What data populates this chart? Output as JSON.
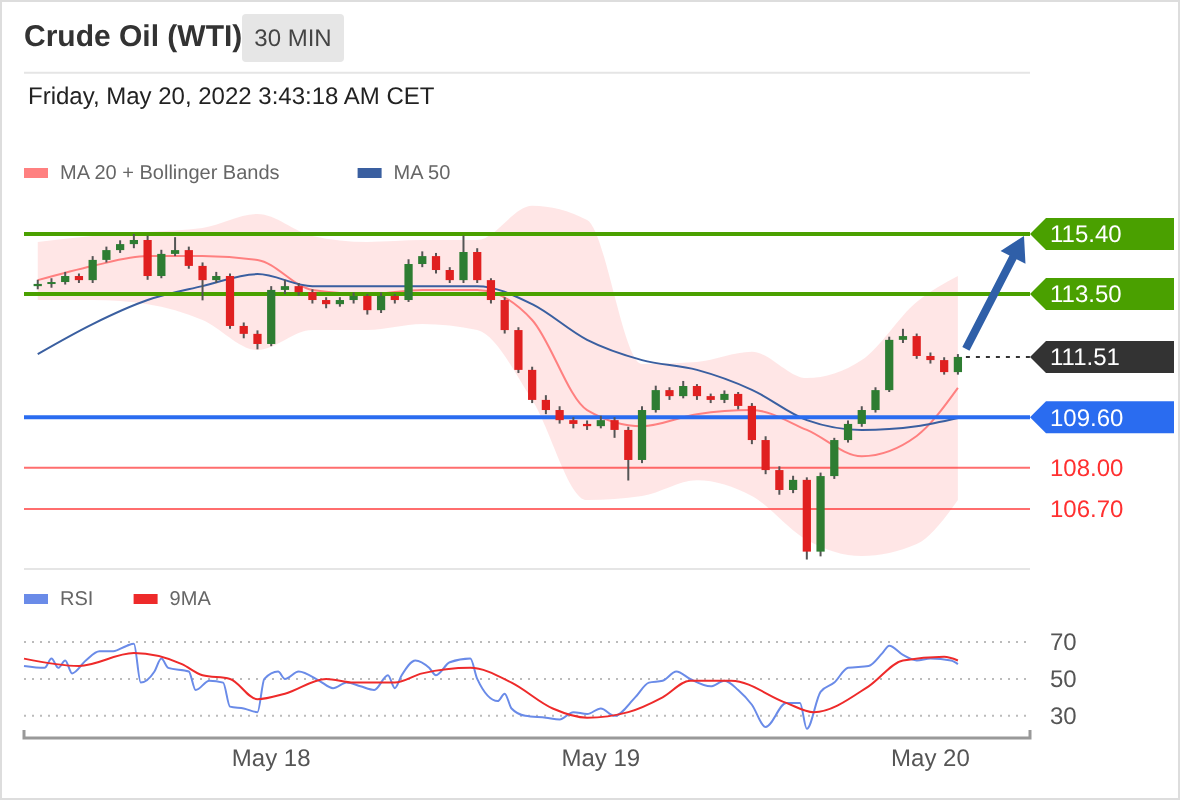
{
  "chart_data": [
    {
      "type": "candlestick",
      "title": "Crude Oil (WTI)",
      "subtitle": "30 MIN",
      "annotations": [
        "Friday, May 20, 2022 3:43:18 AM CET"
      ],
      "tick_labels": false,
      "legend": "top left",
      "xlim": [
        "2022-05-17T06:00",
        "2022-05-20T07:15"
      ],
      "ylim": [
        104.8,
        120.5
      ],
      "x": [
        "2022-05-17T07:00",
        "2022-05-17T08:00",
        "2022-05-17T09:00",
        "2022-05-17T10:00",
        "2022-05-17T11:00",
        "2022-05-17T12:00",
        "2022-05-17T13:00",
        "2022-05-17T14:00",
        "2022-05-17T15:00",
        "2022-05-17T16:00",
        "2022-05-17T17:00",
        "2022-05-17T18:00",
        "2022-05-17T19:00",
        "2022-05-17T20:00",
        "2022-05-17T21:00",
        "2022-05-17T22:00",
        "2022-05-17T23:00",
        "2022-05-18T00:00",
        "2022-05-18T01:00",
        "2022-05-18T02:00",
        "2022-05-18T03:00",
        "2022-05-18T04:00",
        "2022-05-18T05:00",
        "2022-05-18T06:00",
        "2022-05-18T07:00",
        "2022-05-18T08:00",
        "2022-05-18T09:00",
        "2022-05-18T10:00",
        "2022-05-18T11:00",
        "2022-05-18T12:00",
        "2022-05-18T13:00",
        "2022-05-18T14:00",
        "2022-05-18T15:00",
        "2022-05-18T16:00",
        "2022-05-18T17:00",
        "2022-05-18T18:00",
        "2022-05-18T19:00",
        "2022-05-18T20:00",
        "2022-05-18T21:00",
        "2022-05-18T22:00",
        "2022-05-18T23:00",
        "2022-05-19T00:00",
        "2022-05-19T01:00",
        "2022-05-19T02:00",
        "2022-05-19T03:00",
        "2022-05-19T04:00",
        "2022-05-19T05:00",
        "2022-05-19T06:00",
        "2022-05-19T07:00",
        "2022-05-19T08:00",
        "2022-05-19T09:00",
        "2022-05-19T10:00",
        "2022-05-19T11:00",
        "2022-05-19T12:00",
        "2022-05-19T13:00",
        "2022-05-19T14:00",
        "2022-05-19T15:00",
        "2022-05-19T16:00",
        "2022-05-19T17:00",
        "2022-05-19T18:00",
        "2022-05-19T19:00",
        "2022-05-19T20:00",
        "2022-05-19T21:00",
        "2022-05-19T22:00",
        "2022-05-19T23:00",
        "2022-05-20T00:00",
        "2022-05-20T01:00",
        "2022-05-20T02:00"
      ],
      "ohlc": [
        [
          113.75,
          113.95,
          113.65,
          113.82
        ],
        [
          113.82,
          114.0,
          113.7,
          113.88
        ],
        [
          113.88,
          114.2,
          113.8,
          114.07
        ],
        [
          114.07,
          114.15,
          113.85,
          113.94
        ],
        [
          113.94,
          114.7,
          113.85,
          114.58
        ],
        [
          114.58,
          115.0,
          114.5,
          114.89
        ],
        [
          114.89,
          115.2,
          114.8,
          115.08
        ],
        [
          115.08,
          115.4,
          114.95,
          115.21
        ],
        [
          115.21,
          115.35,
          113.95,
          114.07
        ],
        [
          114.07,
          114.9,
          114.0,
          114.77
        ],
        [
          114.77,
          115.3,
          114.7,
          114.89
        ],
        [
          114.89,
          115.0,
          114.3,
          114.39
        ],
        [
          114.39,
          114.5,
          113.3,
          113.94
        ],
        [
          113.94,
          114.2,
          113.85,
          114.07
        ],
        [
          114.07,
          114.15,
          112.4,
          112.49
        ],
        [
          112.49,
          112.6,
          112.1,
          112.24
        ],
        [
          112.24,
          112.35,
          111.75,
          111.92
        ],
        [
          111.92,
          113.75,
          111.85,
          113.63
        ],
        [
          113.63,
          113.95,
          113.5,
          113.75
        ],
        [
          113.75,
          113.85,
          113.45,
          113.56
        ],
        [
          113.56,
          113.65,
          113.2,
          113.31
        ],
        [
          113.31,
          113.4,
          113.05,
          113.18
        ],
        [
          113.18,
          113.4,
          113.1,
          113.31
        ],
        [
          113.31,
          113.55,
          113.2,
          113.44
        ],
        [
          113.44,
          113.5,
          112.85,
          112.99
        ],
        [
          112.99,
          113.55,
          112.9,
          113.44
        ],
        [
          113.44,
          113.5,
          113.2,
          113.31
        ],
        [
          113.31,
          114.6,
          113.25,
          114.45
        ],
        [
          114.45,
          114.85,
          114.35,
          114.7
        ],
        [
          114.7,
          114.8,
          114.15,
          114.26
        ],
        [
          114.26,
          114.35,
          113.85,
          113.94
        ],
        [
          113.94,
          115.35,
          113.85,
          114.83
        ],
        [
          114.83,
          114.95,
          113.85,
          113.94
        ],
        [
          113.94,
          114.0,
          113.2,
          113.31
        ],
        [
          113.31,
          113.4,
          112.25,
          112.36
        ],
        [
          112.36,
          112.45,
          111.0,
          111.1
        ],
        [
          111.1,
          111.2,
          110.05,
          110.15
        ],
        [
          110.15,
          110.3,
          109.7,
          109.83
        ],
        [
          109.83,
          109.95,
          109.4,
          109.51
        ],
        [
          109.51,
          109.6,
          109.25,
          109.39
        ],
        [
          109.39,
          109.5,
          109.2,
          109.32
        ],
        [
          109.32,
          109.65,
          109.25,
          109.51
        ],
        [
          109.51,
          109.6,
          108.95,
          109.2
        ],
        [
          109.2,
          109.3,
          107.6,
          108.25
        ],
        [
          108.25,
          109.95,
          108.15,
          109.83
        ],
        [
          109.83,
          110.6,
          109.75,
          110.46
        ],
        [
          110.46,
          110.55,
          110.15,
          110.27
        ],
        [
          110.27,
          110.75,
          110.2,
          110.59
        ],
        [
          110.59,
          110.65,
          110.15,
          110.27
        ],
        [
          110.27,
          110.35,
          110.05,
          110.15
        ],
        [
          110.15,
          110.45,
          110.05,
          110.34
        ],
        [
          110.34,
          110.4,
          109.85,
          109.96
        ],
        [
          109.96,
          110.05,
          108.75,
          108.88
        ],
        [
          108.88,
          109.0,
          107.8,
          107.93
        ],
        [
          107.93,
          108.05,
          107.15,
          107.3
        ],
        [
          107.3,
          107.75,
          107.2,
          107.62
        ],
        [
          107.62,
          107.7,
          105.1,
          105.35
        ],
        [
          105.35,
          107.85,
          105.2,
          107.74
        ],
        [
          107.74,
          108.95,
          107.65,
          108.88
        ],
        [
          108.88,
          109.5,
          108.8,
          109.39
        ],
        [
          109.39,
          109.95,
          109.3,
          109.83
        ],
        [
          109.83,
          110.55,
          109.75,
          110.46
        ],
        [
          110.46,
          112.15,
          110.4,
          112.05
        ],
        [
          112.05,
          112.4,
          111.95,
          112.17
        ],
        [
          112.17,
          112.25,
          111.45,
          111.54
        ],
        [
          111.54,
          111.65,
          111.3,
          111.41
        ],
        [
          111.41,
          111.5,
          110.95,
          111.03
        ],
        [
          111.03,
          111.6,
          110.95,
          111.51
        ]
      ],
      "series": [
        {
          "name": "MA 20 + Bollinger Bands",
          "type": "line",
          "color": "#ff8080",
          "x": [
            "2022-05-17T07:00",
            "2022-05-17T11:00",
            "2022-05-17T15:00",
            "2022-05-17T19:00",
            "2022-05-17T23:00",
            "2022-05-18T03:00",
            "2022-05-18T07:00",
            "2022-05-18T11:00",
            "2022-05-18T15:00",
            "2022-05-18T19:00",
            "2022-05-18T23:00",
            "2022-05-19T03:00",
            "2022-05-19T07:00",
            "2022-05-19T11:00",
            "2022-05-19T15:00",
            "2022-05-19T19:00",
            "2022-05-19T23:00",
            "2022-05-20T02:00"
          ],
          "values": [
            113.94,
            114.39,
            114.7,
            114.7,
            114.58,
            113.63,
            113.5,
            113.63,
            113.63,
            112.68,
            109.83,
            109.32,
            109.7,
            109.83,
            109.2,
            108.37,
            109.01,
            110.53
          ],
          "upper": [
            115.15,
            115.34,
            115.46,
            115.59,
            116.03,
            115.34,
            115.15,
            115.21,
            115.21,
            116.29,
            115.84,
            111.29,
            111.35,
            111.67,
            110.84,
            111.41,
            113.25,
            114.07
          ],
          "lower": [
            113.31,
            113.31,
            113.18,
            112.68,
            111.73,
            112.36,
            112.36,
            112.55,
            112.36,
            110.15,
            106.98,
            107.11,
            107.61,
            107.11,
            105.72,
            105.21,
            105.59,
            106.98
          ]
        },
        {
          "name": "MA 50",
          "type": "line",
          "color": "#3a5fa0",
          "x": [
            "2022-05-17T07:00",
            "2022-05-17T11:00",
            "2022-05-17T15:00",
            "2022-05-17T19:00",
            "2022-05-17T23:00",
            "2022-05-18T03:00",
            "2022-05-18T07:00",
            "2022-05-18T11:00",
            "2022-05-18T15:00",
            "2022-05-18T19:00",
            "2022-05-18T23:00",
            "2022-05-19T03:00",
            "2022-05-19T07:00",
            "2022-05-19T11:00",
            "2022-05-19T15:00",
            "2022-05-19T19:00",
            "2022-05-19T23:00",
            "2022-05-20T02:00"
          ],
          "values": [
            111.6,
            112.55,
            113.31,
            113.75,
            114.13,
            113.75,
            113.75,
            113.75,
            113.75,
            113.18,
            112.05,
            111.41,
            111.1,
            110.47,
            109.51,
            109.2,
            109.32,
            109.58
          ]
        }
      ],
      "ref_lines": [
        {
          "axis": "y",
          "value": 115.4,
          "label": "115.40",
          "color": "#4aa000",
          "line_style": "solid"
        },
        {
          "axis": "y",
          "value": 113.5,
          "label": "113.50",
          "color": "#4aa000",
          "line_style": "solid"
        },
        {
          "axis": "y",
          "value": 111.51,
          "label": "111.51",
          "color": "#333333",
          "line_style": "dotted"
        },
        {
          "axis": "y",
          "value": 109.6,
          "label": "109.60",
          "color": "#2a6cf0",
          "line_style": "solid"
        },
        {
          "axis": "y",
          "value": 108.0,
          "label": "108.00",
          "color": "#ff3030",
          "line_style": "solid"
        },
        {
          "axis": "y",
          "value": 106.7,
          "label": "106.70",
          "color": "#ff3030",
          "line_style": "solid"
        }
      ]
    },
    {
      "type": "line",
      "legend": "top left",
      "grid": "y",
      "xlim": [
        "2022-05-17T06:00",
        "2022-05-20T07:15"
      ],
      "ylim": [
        18,
        70
      ],
      "yticks": [
        30,
        50,
        70
      ],
      "xticks": [
        {
          "value": "2022-05-18",
          "label": "May 18"
        },
        {
          "value": "2022-05-19",
          "label": "May 19"
        },
        {
          "value": "2022-05-20",
          "label": "May 20"
        }
      ],
      "series": [
        {
          "name": "RSI",
          "color": "#6a8be8",
          "x": [
            "2022-05-17T06:00",
            "2022-05-17T07:30",
            "2022-05-17T08:00",
            "2022-05-17T08:30",
            "2022-05-17T09:00",
            "2022-05-17T09:30",
            "2022-05-17T10:30",
            "2022-05-17T11:30",
            "2022-05-17T12:30",
            "2022-05-17T13:30",
            "2022-05-17T14:00",
            "2022-05-17T14:30",
            "2022-05-17T15:30",
            "2022-05-17T16:00",
            "2022-05-17T16:30",
            "2022-05-17T18:00",
            "2022-05-17T18:30",
            "2022-05-17T19:30",
            "2022-05-17T20:30",
            "2022-05-17T21:00",
            "2022-05-17T22:00",
            "2022-05-17T23:00",
            "2022-05-17T23:30",
            "2022-05-18T00:30",
            "2022-05-18T01:00",
            "2022-05-18T02:00",
            "2022-05-18T03:30",
            "2022-05-18T04:30",
            "2022-05-18T05:30",
            "2022-05-18T06:30",
            "2022-05-18T07:30",
            "2022-05-18T08:30",
            "2022-05-18T09:00",
            "2022-05-18T09:30",
            "2022-05-18T10:30",
            "2022-05-18T11:30",
            "2022-05-18T12:00",
            "2022-05-18T13:00",
            "2022-05-18T14:30",
            "2022-05-18T15:00",
            "2022-05-18T16:30",
            "2022-05-18T17:00",
            "2022-05-18T17:30",
            "2022-05-18T18:30",
            "2022-05-18T20:00",
            "2022-05-18T21:00",
            "2022-05-18T22:00",
            "2022-05-18T23:00",
            "2022-05-19T00:00",
            "2022-05-19T01:00",
            "2022-05-19T02:30",
            "2022-05-19T03:30",
            "2022-05-19T04:30",
            "2022-05-19T05:30",
            "2022-05-19T06:30",
            "2022-05-19T08:00",
            "2022-05-19T09:00",
            "2022-05-19T10:00",
            "2022-05-19T11:00",
            "2022-05-19T12:00",
            "2022-05-19T13:30",
            "2022-05-19T14:30",
            "2022-05-19T15:00",
            "2022-05-19T16:00",
            "2022-05-19T17:00",
            "2022-05-19T18:00",
            "2022-05-19T19:30",
            "2022-05-19T20:30",
            "2022-05-19T21:00",
            "2022-05-19T22:00",
            "2022-05-19T23:00",
            "2022-05-20T00:00",
            "2022-05-20T01:30",
            "2022-05-20T02:00"
          ],
          "values": [
            57,
            56,
            61,
            56,
            60,
            53,
            60,
            65,
            65,
            68,
            69,
            48,
            54,
            61,
            56,
            54,
            44,
            49,
            48,
            35,
            34,
            32,
            50,
            54,
            50,
            54,
            49,
            45,
            48,
            46,
            44,
            52,
            45,
            52,
            60,
            56,
            52,
            59,
            61,
            50,
            38,
            42,
            34,
            30,
            29,
            28,
            32,
            31,
            34,
            30,
            40,
            48,
            49,
            54,
            50,
            46,
            49,
            44,
            36,
            24,
            37,
            37,
            23,
            43,
            48,
            56,
            57,
            64,
            68,
            63,
            60,
            61,
            60,
            58
          ]
        },
        {
          "name": "9MA",
          "color": "#ee2a2a",
          "x": [
            "2022-05-17T06:00",
            "2022-05-17T10:00",
            "2022-05-17T14:00",
            "2022-05-17T17:30",
            "2022-05-17T19:00",
            "2022-05-17T21:00",
            "2022-05-17T23:00",
            "2022-05-18T01:00",
            "2022-05-18T04:00",
            "2022-05-18T06:00",
            "2022-05-18T09:00",
            "2022-05-18T11:00",
            "2022-05-18T14:30",
            "2022-05-18T17:30",
            "2022-05-18T20:30",
            "2022-05-18T23:00",
            "2022-05-19T02:00",
            "2022-05-19T04:30",
            "2022-05-19T06:30",
            "2022-05-19T09:30",
            "2022-05-19T13:30",
            "2022-05-19T15:30",
            "2022-05-19T19:30",
            "2022-05-19T22:00",
            "2022-05-20T01:00",
            "2022-05-20T02:00"
          ],
          "values": [
            61,
            57,
            64,
            58,
            52,
            50,
            39,
            42,
            50,
            48,
            48,
            53,
            56,
            48,
            34,
            29,
            32,
            40,
            49,
            49,
            37,
            32,
            46,
            60,
            62,
            60
          ]
        }
      ]
    }
  ]
}
